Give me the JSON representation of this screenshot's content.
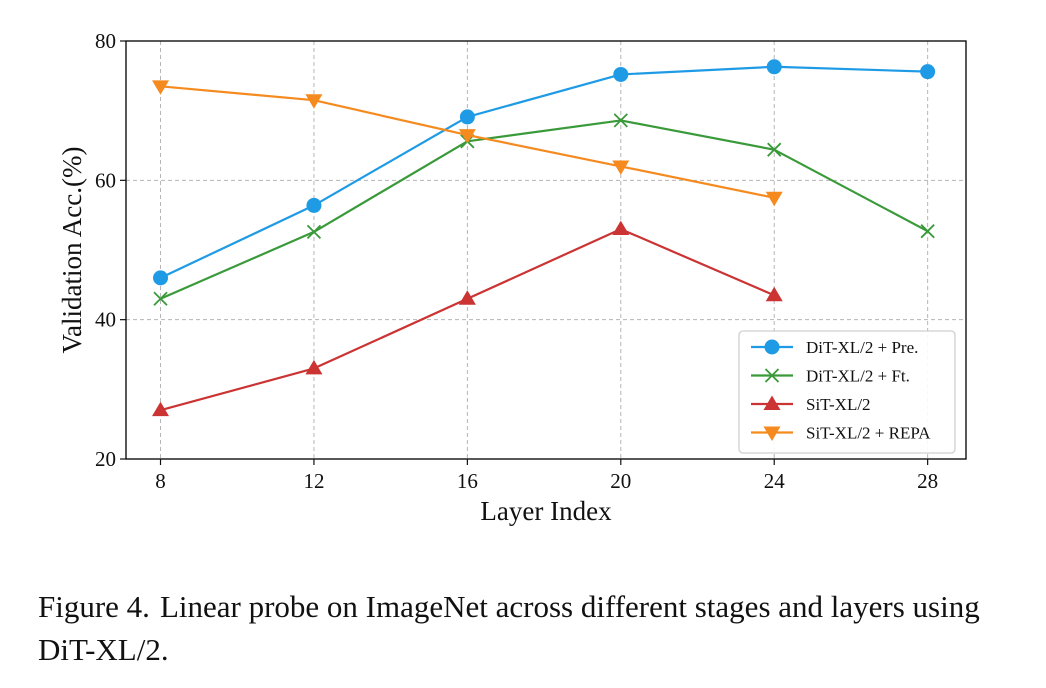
{
  "chart_data": {
    "type": "line",
    "xlabel": "Layer Index",
    "ylabel": "Validation Acc.(%)",
    "xticks": [
      8,
      12,
      16,
      20,
      24,
      28
    ],
    "yticks": [
      20,
      40,
      60,
      80
    ],
    "xlim": [
      7.1,
      29.0
    ],
    "ylim": [
      20,
      80
    ],
    "grid": true,
    "legend_position": "lower-right",
    "series": [
      {
        "name": "DiT-XL/2 + Pre.",
        "color": "#1f9be6",
        "marker": "circle",
        "x": [
          8,
          12,
          16,
          20,
          24,
          28
        ],
        "y": [
          46.0,
          56.4,
          69.1,
          75.2,
          76.3,
          75.6
        ]
      },
      {
        "name": "DiT-XL/2 + Ft.",
        "color": "#3a9a3a",
        "marker": "x",
        "x": [
          8,
          12,
          16,
          20,
          24,
          28
        ],
        "y": [
          43.0,
          52.6,
          65.6,
          68.6,
          64.4,
          52.7
        ]
      },
      {
        "name": "SiT-XL/2",
        "color": "#cc3333",
        "marker": "triangle-up",
        "x": [
          8,
          12,
          16,
          20,
          24
        ],
        "y": [
          27.0,
          33.0,
          43.0,
          53.0,
          43.5
        ]
      },
      {
        "name": "SiT-XL/2 + REPA",
        "color": "#f58a1f",
        "marker": "triangle-down",
        "x": [
          8,
          12,
          16,
          20,
          24
        ],
        "y": [
          73.5,
          71.5,
          66.5,
          62.0,
          57.5
        ]
      }
    ]
  },
  "caption": {
    "label": "Figure 4.",
    "text": "Linear probe on ImageNet across different stages and layers using DiT-XL/2."
  }
}
